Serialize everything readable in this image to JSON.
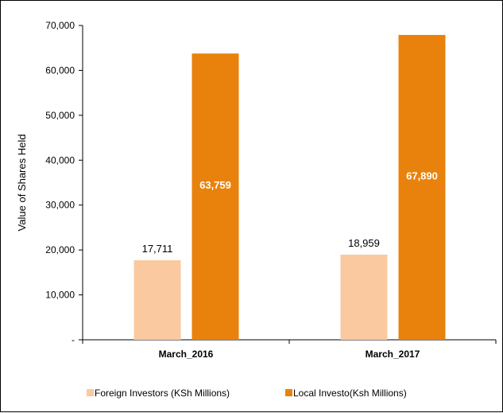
{
  "chart_data": {
    "type": "bar",
    "categories": [
      "March_2016",
      "March_2017"
    ],
    "series": [
      {
        "name": "Foreign Investors (KSh Millions)",
        "values": [
          17711,
          18959
        ],
        "labels": [
          "17,711",
          "18,959"
        ],
        "color": "#FAC9A0",
        "label_position": "outside"
      },
      {
        "name": "Local Investo(Ksh Millions)",
        "values": [
          63759,
          67890
        ],
        "labels": [
          "63,759",
          "67,890"
        ],
        "color": "#E9820C",
        "label_position": "inside"
      }
    ],
    "ylabel": "Value of Shares Held",
    "xlabel": "",
    "ylim": [
      0,
      70000
    ],
    "yticks": [
      0,
      10000,
      20000,
      30000,
      40000,
      50000,
      60000,
      70000
    ],
    "ytick_labels": [
      "-",
      "10,000",
      "20,000",
      "30,000",
      "40,000",
      "50,000",
      "60,000",
      "70,000"
    ],
    "grid": false,
    "legend_position": "bottom"
  }
}
